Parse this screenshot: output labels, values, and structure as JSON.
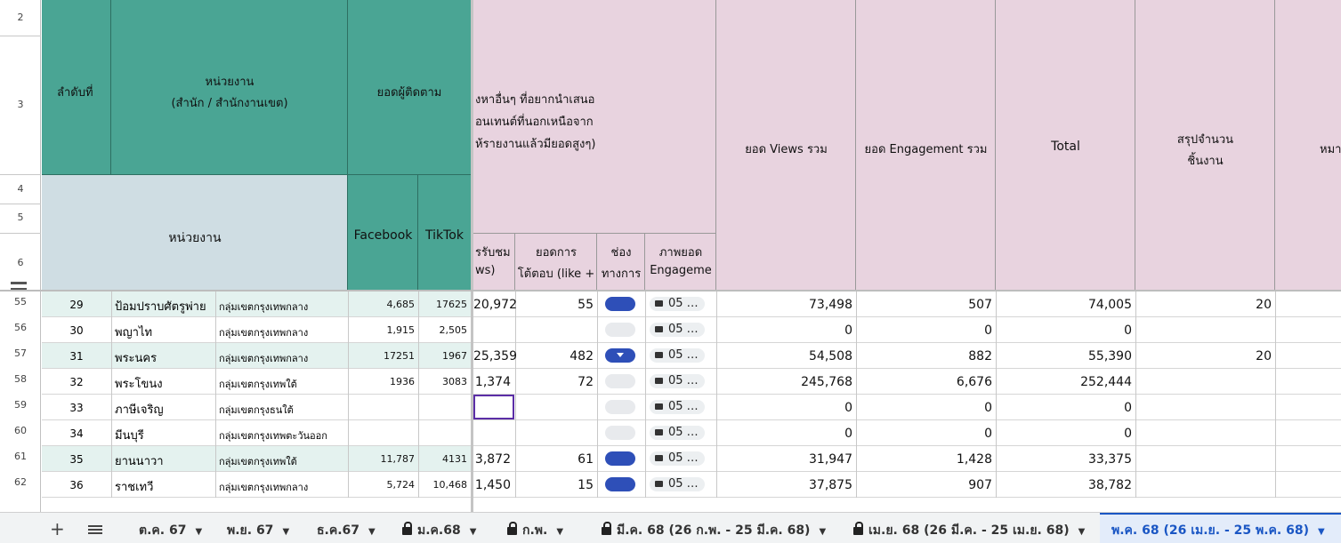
{
  "header": {
    "col_index": "ลำดับที่",
    "col_unit_line1": "หน่วยงาน",
    "col_unit_line2": "(สำนัก / สำนักงานเขต)",
    "col_followers": "ยอดผู้ติดตาม",
    "col_unit_sub": "หน่วยงาน",
    "col_facebook": "Facebook",
    "col_tiktok": "TikTok",
    "other_topic_line1": "งหาอื่นๆ ที่อยากนำเสนอ",
    "other_topic_line2": "อนเทนต์ที่นอกเหนือจาก",
    "other_topic_line3": "ห้รายงานแล้วมียอดสูงๆ)",
    "sub_views_line1": "รรับชม",
    "sub_views_line2": "ws)",
    "sub_eng_line1": "ยอดการ",
    "sub_eng_line2": "โต้ตอบ (like +",
    "sub_channel_line1": "ช่อง",
    "sub_channel_line2": "ทางการ",
    "sub_img_line1": "ภาพยอด",
    "sub_img_line2": "Engageme",
    "total_views": "ยอด Views รวม",
    "total_engagement": "ยอด Engagement รวม",
    "total": "Total",
    "summary_line1": "สรุปจำนวน",
    "summary_line2": "ชิ้นงาน",
    "note_partial": "หมา"
  },
  "row_numbers": [
    "2",
    "3",
    "4",
    "5",
    "6"
  ],
  "rows": [
    {
      "rownum": "55",
      "idx": "29",
      "name": "ป้อมปราบศัตรูพ่าย",
      "group": "กลุ่มเขตกรุงเทพกลาง",
      "fb": "4,685",
      "tt": "17625",
      "views": "20,972",
      "eng": "55",
      "channel": "on",
      "img": "05 …",
      "total_views": "73,498",
      "total_eng": "507",
      "total": "74,005",
      "summary": "20"
    },
    {
      "rownum": "56",
      "idx": "30",
      "name": "พญาไท",
      "group": "กลุ่มเขตกรุงเทพกลาง",
      "fb": "1,915",
      "tt": "2,505",
      "views": "",
      "eng": "",
      "channel": "off",
      "img": "05 …",
      "total_views": "0",
      "total_eng": "0",
      "total": "0",
      "summary": ""
    },
    {
      "rownum": "57",
      "idx": "31",
      "name": "พระนคร",
      "group": "กลุ่มเขตกรุงเทพกลาง",
      "fb": "17251",
      "tt": "1967",
      "views": "25,359",
      "eng": "482",
      "channel": "dropdown",
      "img": "05 …",
      "total_views": "54,508",
      "total_eng": "882",
      "total": "55,390",
      "summary": "20"
    },
    {
      "rownum": "58",
      "idx": "32",
      "name": "พระโขนง",
      "group": "กลุ่มเขตกรุงเทพใต้",
      "fb": "1936",
      "tt": "3083",
      "views": "1,374",
      "eng": "72",
      "channel": "off",
      "img": "05 …",
      "total_views": "245,768",
      "total_eng": "6,676",
      "total": "252,444",
      "summary": ""
    },
    {
      "rownum": "59",
      "idx": "33",
      "name": "ภาษีเจริญ",
      "group": "กลุ่มเขตกรุงธนใต้",
      "fb": "",
      "tt": "",
      "views": "",
      "eng": "",
      "channel": "off",
      "img": "05 …",
      "total_views": "0",
      "total_eng": "0",
      "total": "0",
      "summary": ""
    },
    {
      "rownum": "60",
      "idx": "34",
      "name": "มีนบุรี",
      "group": "กลุ่มเขตกรุงเทพตะวันออก",
      "fb": "",
      "tt": "",
      "views": "",
      "eng": "",
      "channel": "off",
      "img": "05 …",
      "total_views": "0",
      "total_eng": "0",
      "total": "0",
      "summary": ""
    },
    {
      "rownum": "61",
      "idx": "35",
      "name": "ยานนาวา",
      "group": "กลุ่มเขตกรุงเทพใต้",
      "fb": "11,787",
      "tt": "4131",
      "views": "3,872",
      "eng": "61",
      "channel": "on",
      "img": "05 …",
      "total_views": "31,947",
      "total_eng": "1,428",
      "total": "33,375",
      "summary": ""
    },
    {
      "rownum": "62",
      "idx": "36",
      "name": "ราชเทวี",
      "group": "กลุ่มเขตกรุงเทพกลาง",
      "fb": "5,724",
      "tt": "10,468",
      "views": "1,450",
      "eng": "15",
      "channel": "on",
      "img": "05 …",
      "total_views": "37,875",
      "total_eng": "907",
      "total": "38,782",
      "summary": ""
    }
  ],
  "tabs": [
    {
      "label": "ต.ค. 67",
      "locked": false,
      "active": false
    },
    {
      "label": "พ.ย. 67",
      "locked": false,
      "active": false
    },
    {
      "label": "ธ.ค.67",
      "locked": false,
      "active": false
    },
    {
      "label": "ม.ค.68",
      "locked": true,
      "active": false
    },
    {
      "label": "ก.พ.",
      "locked": true,
      "active": false
    },
    {
      "label": "มี.ค. 68 (26 ก.พ. - 25 มี.ค. 68)",
      "locked": true,
      "active": false
    },
    {
      "label": "เม.ย. 68 (26 มี.ค. - 25 เม.ย. 68)",
      "locked": true,
      "active": false
    },
    {
      "label": "พ.ค. 68 (26 เม.ย. - 25 พ.ค. 68)",
      "locked": false,
      "active": true
    }
  ],
  "colors": {
    "teal": "#4aa594",
    "pink": "#e8d3df",
    "gray_blue": "#cfdde3",
    "row_alt": "#e4f2ef",
    "pill_on": "#2e4fb8",
    "pill_off": "#e8eaed",
    "active_tab_text": "#1a56c4",
    "active_tab_bg": "#e3ecfa"
  },
  "icons": {
    "add": "plus-icon",
    "sheets_menu": "hamburger-icon",
    "lock": "lock-icon",
    "image_chip": "camera-icon",
    "dropdown": "caret-down-icon"
  }
}
